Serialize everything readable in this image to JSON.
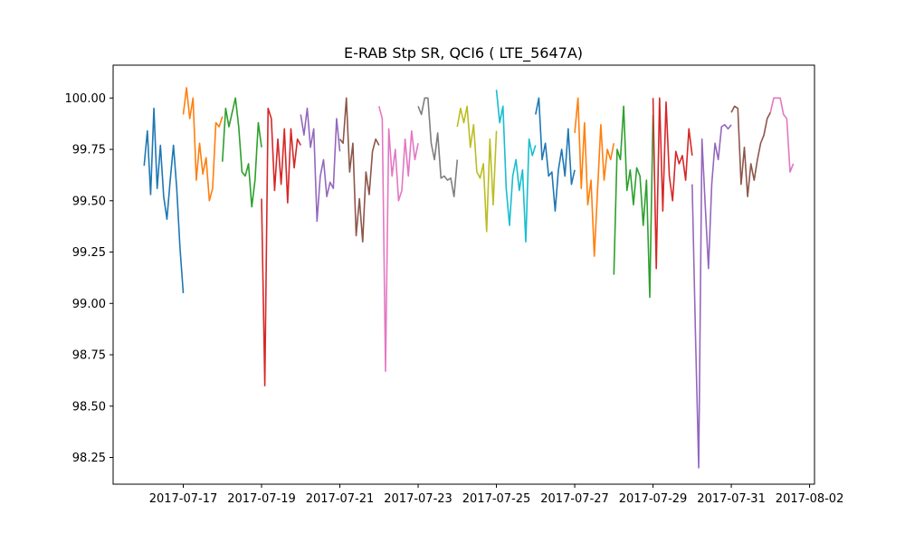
{
  "chart_data": {
    "type": "line",
    "title": "E-RAB Stp SR, QCI6 ( LTE_5647A)",
    "xlabel": "",
    "ylabel": "",
    "xlim": [
      "2017-07-15T05:00",
      "2017-08-02T03:00"
    ],
    "ylim": [
      98.12,
      100.16
    ],
    "x_ticks": [
      "2017-07-17",
      "2017-07-19",
      "2017-07-21",
      "2017-07-23",
      "2017-07-25",
      "2017-07-27",
      "2017-07-29",
      "2017-07-31",
      "2017-08-02"
    ],
    "y_ticks": [
      "98.25",
      "98.50",
      "98.75",
      "99.00",
      "99.25",
      "99.50",
      "99.75",
      "100.00"
    ],
    "grid": false,
    "series": [
      {
        "color": "#1f77b4",
        "x": [
          "2017-07-16T00:00",
          "2017-07-16T02:00",
          "2017-07-16T04:00",
          "2017-07-16T06:00",
          "2017-07-16T08:00",
          "2017-07-16T10:00",
          "2017-07-16T12:00",
          "2017-07-16T14:00",
          "2017-07-16T16:00",
          "2017-07-16T18:00",
          "2017-07-16T20:00",
          "2017-07-16T22:00",
          "2017-07-17T00:00"
        ],
        "y": [
          99.67,
          99.84,
          99.53,
          99.95,
          99.56,
          99.77,
          99.52,
          99.41,
          99.6,
          99.77,
          99.56,
          99.27,
          99.05
        ]
      },
      {
        "color": "#ff7f0e",
        "x": [
          "2017-07-17T00:00",
          "2017-07-17T02:00",
          "2017-07-17T04:00",
          "2017-07-17T06:00",
          "2017-07-17T08:00",
          "2017-07-17T10:00",
          "2017-07-17T12:00",
          "2017-07-17T14:00",
          "2017-07-17T16:00",
          "2017-07-17T18:00",
          "2017-07-17T20:00",
          "2017-07-17T22:00",
          "2017-07-18T00:00"
        ],
        "y": [
          99.92,
          100.05,
          99.9,
          100.0,
          99.6,
          99.78,
          99.63,
          99.71,
          99.5,
          99.56,
          99.88,
          99.86,
          99.91
        ]
      },
      {
        "color": "#2ca02c",
        "x": [
          "2017-07-18T00:00",
          "2017-07-18T02:00",
          "2017-07-18T04:00",
          "2017-07-18T06:00",
          "2017-07-18T08:00",
          "2017-07-18T10:00",
          "2017-07-18T12:00",
          "2017-07-18T14:00",
          "2017-07-18T16:00",
          "2017-07-18T18:00",
          "2017-07-18T20:00",
          "2017-07-18T22:00",
          "2017-07-19T00:00"
        ],
        "y": [
          99.69,
          99.95,
          99.86,
          99.93,
          100.0,
          99.86,
          99.64,
          99.62,
          99.68,
          99.47,
          99.6,
          99.88,
          99.76
        ]
      },
      {
        "color": "#d62728",
        "x": [
          "2017-07-19T00:00",
          "2017-07-19T02:00",
          "2017-07-19T04:00",
          "2017-07-19T06:00",
          "2017-07-19T08:00",
          "2017-07-19T10:00",
          "2017-07-19T12:00",
          "2017-07-19T14:00",
          "2017-07-19T16:00",
          "2017-07-19T18:00",
          "2017-07-19T20:00",
          "2017-07-19T22:00",
          "2017-07-20T00:00"
        ],
        "y": [
          99.51,
          98.6,
          99.95,
          99.9,
          99.55,
          99.8,
          99.58,
          99.85,
          99.49,
          99.85,
          99.66,
          99.8,
          99.77
        ]
      },
      {
        "color": "#9467bd",
        "x": [
          "2017-07-20T00:00",
          "2017-07-20T02:00",
          "2017-07-20T04:00",
          "2017-07-20T06:00",
          "2017-07-20T08:00",
          "2017-07-20T10:00",
          "2017-07-20T12:00",
          "2017-07-20T14:00",
          "2017-07-20T16:00",
          "2017-07-20T18:00",
          "2017-07-20T20:00",
          "2017-07-20T22:00",
          "2017-07-21T00:00"
        ],
        "y": [
          99.92,
          99.82,
          99.95,
          99.76,
          99.85,
          99.4,
          99.62,
          99.7,
          99.52,
          99.59,
          99.56,
          99.9,
          99.74
        ]
      },
      {
        "color": "#8c564b",
        "x": [
          "2017-07-21T00:00",
          "2017-07-21T02:00",
          "2017-07-21T04:00",
          "2017-07-21T06:00",
          "2017-07-21T08:00",
          "2017-07-21T10:00",
          "2017-07-21T12:00",
          "2017-07-21T14:00",
          "2017-07-21T16:00",
          "2017-07-21T18:00",
          "2017-07-21T20:00",
          "2017-07-21T22:00",
          "2017-07-22T00:00"
        ],
        "y": [
          99.8,
          99.78,
          100.0,
          99.64,
          99.78,
          99.33,
          99.51,
          99.3,
          99.64,
          99.53,
          99.74,
          99.8,
          99.77
        ]
      },
      {
        "color": "#e377c2",
        "x": [
          "2017-07-22T00:00",
          "2017-07-22T02:00",
          "2017-07-22T04:00",
          "2017-07-22T06:00",
          "2017-07-22T08:00",
          "2017-07-22T10:00",
          "2017-07-22T12:00",
          "2017-07-22T14:00",
          "2017-07-22T16:00",
          "2017-07-22T18:00",
          "2017-07-22T20:00",
          "2017-07-22T22:00",
          "2017-07-23T00:00"
        ],
        "y": [
          99.96,
          99.9,
          98.67,
          99.85,
          99.62,
          99.75,
          99.5,
          99.55,
          99.8,
          99.62,
          99.84,
          99.7,
          99.78
        ]
      },
      {
        "color": "#7f7f7f",
        "x": [
          "2017-07-23T00:00",
          "2017-07-23T02:00",
          "2017-07-23T04:00",
          "2017-07-23T06:00",
          "2017-07-23T08:00",
          "2017-07-23T10:00",
          "2017-07-23T12:00",
          "2017-07-23T14:00",
          "2017-07-23T16:00",
          "2017-07-23T18:00",
          "2017-07-23T20:00",
          "2017-07-23T22:00",
          "2017-07-24T00:00"
        ],
        "y": [
          99.96,
          99.92,
          100.0,
          100.0,
          99.78,
          99.7,
          99.83,
          99.61,
          99.62,
          99.6,
          99.61,
          99.52,
          99.7
        ]
      },
      {
        "color": "#bcbd22",
        "x": [
          "2017-07-24T00:00",
          "2017-07-24T02:00",
          "2017-07-24T04:00",
          "2017-07-24T06:00",
          "2017-07-24T08:00",
          "2017-07-24T10:00",
          "2017-07-24T12:00",
          "2017-07-24T14:00",
          "2017-07-24T16:00",
          "2017-07-24T18:00",
          "2017-07-24T20:00",
          "2017-07-24T22:00",
          "2017-07-25T00:00"
        ],
        "y": [
          99.86,
          99.95,
          99.88,
          99.96,
          99.76,
          99.87,
          99.64,
          99.61,
          99.68,
          99.35,
          99.8,
          99.48,
          99.84
        ]
      },
      {
        "color": "#17becf",
        "x": [
          "2017-07-25T00:00",
          "2017-07-25T02:00",
          "2017-07-25T04:00",
          "2017-07-25T06:00",
          "2017-07-25T08:00",
          "2017-07-25T10:00",
          "2017-07-25T12:00",
          "2017-07-25T14:00",
          "2017-07-25T16:00",
          "2017-07-25T18:00",
          "2017-07-25T20:00",
          "2017-07-25T22:00",
          "2017-07-26T00:00"
        ],
        "y": [
          100.04,
          99.88,
          99.96,
          99.56,
          99.38,
          99.62,
          99.7,
          99.55,
          99.65,
          99.3,
          99.8,
          99.72,
          99.77
        ]
      },
      {
        "color": "#1f77b4",
        "x": [
          "2017-07-26T00:00",
          "2017-07-26T02:00",
          "2017-07-26T04:00",
          "2017-07-26T06:00",
          "2017-07-26T08:00",
          "2017-07-26T10:00",
          "2017-07-26T12:00",
          "2017-07-26T14:00",
          "2017-07-26T16:00",
          "2017-07-26T18:00",
          "2017-07-26T20:00",
          "2017-07-26T22:00",
          "2017-07-27T00:00"
        ],
        "y": [
          99.92,
          100.0,
          99.7,
          99.78,
          99.62,
          99.64,
          99.45,
          99.65,
          99.75,
          99.62,
          99.85,
          99.58,
          99.65
        ]
      },
      {
        "color": "#ff7f0e",
        "x": [
          "2017-07-27T00:00",
          "2017-07-27T02:00",
          "2017-07-27T04:00",
          "2017-07-27T06:00",
          "2017-07-27T08:00",
          "2017-07-27T10:00",
          "2017-07-27T12:00",
          "2017-07-27T14:00",
          "2017-07-27T16:00",
          "2017-07-27T18:00",
          "2017-07-27T20:00",
          "2017-07-27T22:00",
          "2017-07-28T00:00"
        ],
        "y": [
          99.83,
          100.0,
          99.56,
          99.88,
          99.48,
          99.6,
          99.23,
          99.55,
          99.87,
          99.6,
          99.75,
          99.7,
          99.78
        ]
      },
      {
        "color": "#2ca02c",
        "x": [
          "2017-07-28T00:00",
          "2017-07-28T02:00",
          "2017-07-28T04:00",
          "2017-07-28T06:00",
          "2017-07-28T08:00",
          "2017-07-28T10:00",
          "2017-07-28T12:00",
          "2017-07-28T14:00",
          "2017-07-28T16:00",
          "2017-07-28T18:00",
          "2017-07-28T20:00",
          "2017-07-28T22:00",
          "2017-07-29T00:00"
        ],
        "y": [
          99.14,
          99.75,
          99.7,
          99.96,
          99.55,
          99.65,
          99.48,
          99.66,
          99.62,
          99.38,
          99.6,
          99.03,
          99.92
        ]
      },
      {
        "color": "#d62728",
        "x": [
          "2017-07-29T00:00",
          "2017-07-29T02:00",
          "2017-07-29T04:00",
          "2017-07-29T06:00",
          "2017-07-29T08:00",
          "2017-07-29T10:00",
          "2017-07-29T12:00",
          "2017-07-29T14:00",
          "2017-07-29T16:00",
          "2017-07-29T18:00",
          "2017-07-29T20:00",
          "2017-07-29T22:00",
          "2017-07-30T00:00"
        ],
        "y": [
          100.0,
          99.17,
          100.0,
          99.45,
          99.98,
          99.62,
          99.5,
          99.74,
          99.68,
          99.72,
          99.6,
          99.85,
          99.72
        ]
      },
      {
        "color": "#9467bd",
        "x": [
          "2017-07-30T00:00",
          "2017-07-30T02:00",
          "2017-07-30T04:00",
          "2017-07-30T06:00",
          "2017-07-30T08:00",
          "2017-07-30T10:00",
          "2017-07-30T12:00",
          "2017-07-30T14:00",
          "2017-07-30T16:00",
          "2017-07-30T18:00",
          "2017-07-30T20:00",
          "2017-07-30T22:00",
          "2017-07-31T00:00"
        ],
        "y": [
          99.58,
          98.86,
          98.2,
          99.8,
          99.48,
          99.17,
          99.58,
          99.78,
          99.7,
          99.86,
          99.87,
          99.85,
          99.87
        ]
      },
      {
        "color": "#8c564b",
        "x": [
          "2017-07-31T00:00",
          "2017-07-31T02:00",
          "2017-07-31T04:00",
          "2017-07-31T06:00",
          "2017-07-31T08:00",
          "2017-07-31T10:00",
          "2017-07-31T12:00",
          "2017-07-31T14:00",
          "2017-07-31T16:00",
          "2017-07-31T18:00",
          "2017-07-31T20:00",
          "2017-07-31T22:00",
          "2017-08-01T00:00"
        ],
        "y": [
          99.93,
          99.96,
          99.95,
          99.58,
          99.76,
          99.52,
          99.68,
          99.6,
          99.7,
          99.78,
          99.82,
          99.9,
          99.93
        ]
      },
      {
        "color": "#e377c2",
        "x": [
          "2017-08-01T00:00",
          "2017-08-01T02:00",
          "2017-08-01T04:00",
          "2017-08-01T06:00",
          "2017-08-01T08:00",
          "2017-08-01T10:00",
          "2017-08-01T12:00",
          "2017-08-01T14:00"
        ],
        "y": [
          99.93,
          100.0,
          100.0,
          100.0,
          99.92,
          99.9,
          99.64,
          99.68
        ]
      }
    ]
  }
}
